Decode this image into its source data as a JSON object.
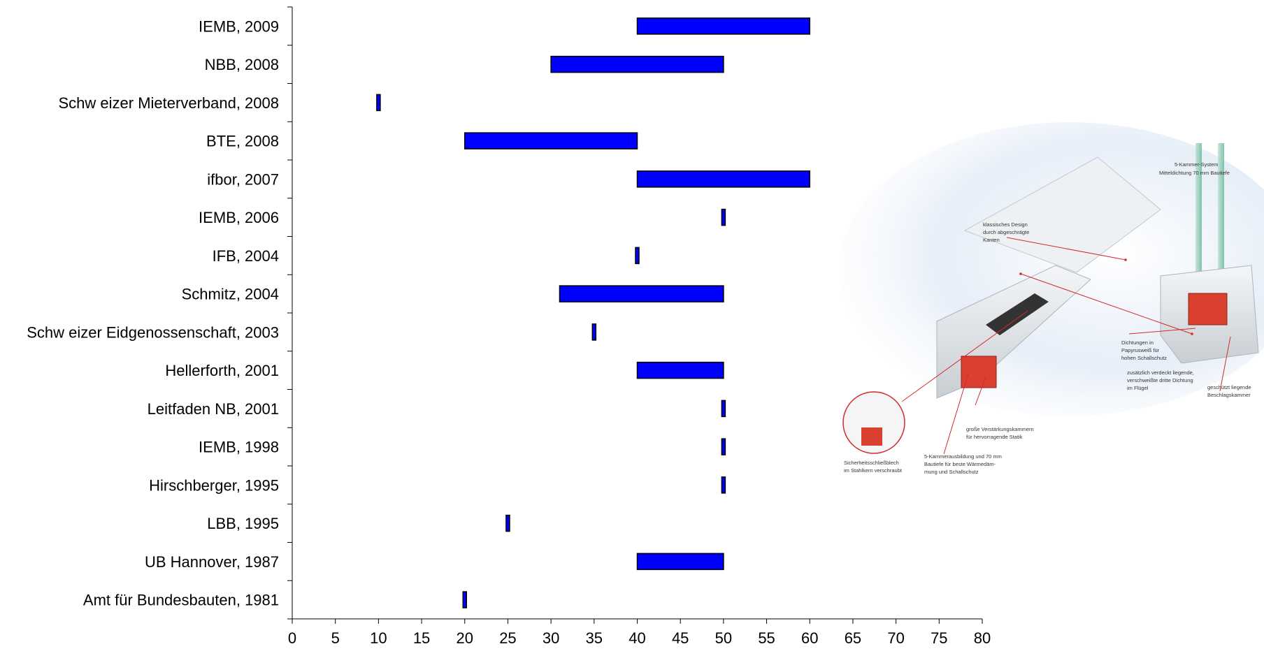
{
  "chart_data": {
    "type": "bar",
    "orientation": "horizontal",
    "style": "floating-range",
    "categories": [
      "IEMB, 2009",
      "NBB, 2008",
      "Schw eizer Mieterverband, 2008",
      "BTE, 2008",
      "ifbor, 2007",
      "IEMB, 2006",
      "IFB, 2004",
      "Schmitz, 2004",
      "Schw eizer Eidgenossenschaft, 2003",
      "Hellerforth, 2001",
      "Leitfaden NB, 2001",
      "IEMB, 1998",
      "Hirschberger, 1995",
      "LBB, 1995",
      "UB Hannover, 1987",
      "Amt für Bundesbauten, 1981"
    ],
    "ranges": [
      [
        40,
        60
      ],
      [
        30,
        50
      ],
      [
        10,
        10
      ],
      [
        20,
        40
      ],
      [
        40,
        60
      ],
      [
        50,
        50
      ],
      [
        40,
        40
      ],
      [
        31,
        50
      ],
      [
        35,
        35
      ],
      [
        40,
        50
      ],
      [
        50,
        50
      ],
      [
        50,
        50
      ],
      [
        50,
        50
      ],
      [
        25,
        25
      ],
      [
        40,
        50
      ],
      [
        20,
        20
      ]
    ],
    "xlim": [
      0,
      80
    ],
    "xticks": [
      0,
      5,
      10,
      15,
      20,
      25,
      30,
      35,
      40,
      45,
      50,
      55,
      60,
      65,
      70,
      75,
      80
    ],
    "title": "",
    "xlabel": "",
    "ylabel": "",
    "grid": false,
    "legend": "none",
    "colors": {
      "bar_fill": "#0000ff",
      "bar_stroke": "#000000",
      "axis": "#000000"
    }
  },
  "illustration": {
    "subject": "cross-section of a PVC window frame",
    "annotations": [
      "5-Kammer-System",
      "Mitteldichtung 70 mm Bautiefe",
      "klassisches Design",
      "durch abgeschrägte",
      "Kanten",
      "Dichtungen in",
      "Papyrusweiß für",
      "hohen Schallschutz",
      "zusätzlich verdeckt liegende,",
      "verschweißte dritte Dichtung",
      "im Flügel",
      "geschützt liegende",
      "Beschlagskammer",
      "große Verstärkungskammern",
      "für hervorragende Statik",
      "5-Kammerausbildung und 70 mm",
      "Bautiefe für beste Wärmedäm-",
      "mung und Schallschutz",
      "Sicherheitsschließblech",
      "im Stahlkern verschraubt"
    ]
  }
}
